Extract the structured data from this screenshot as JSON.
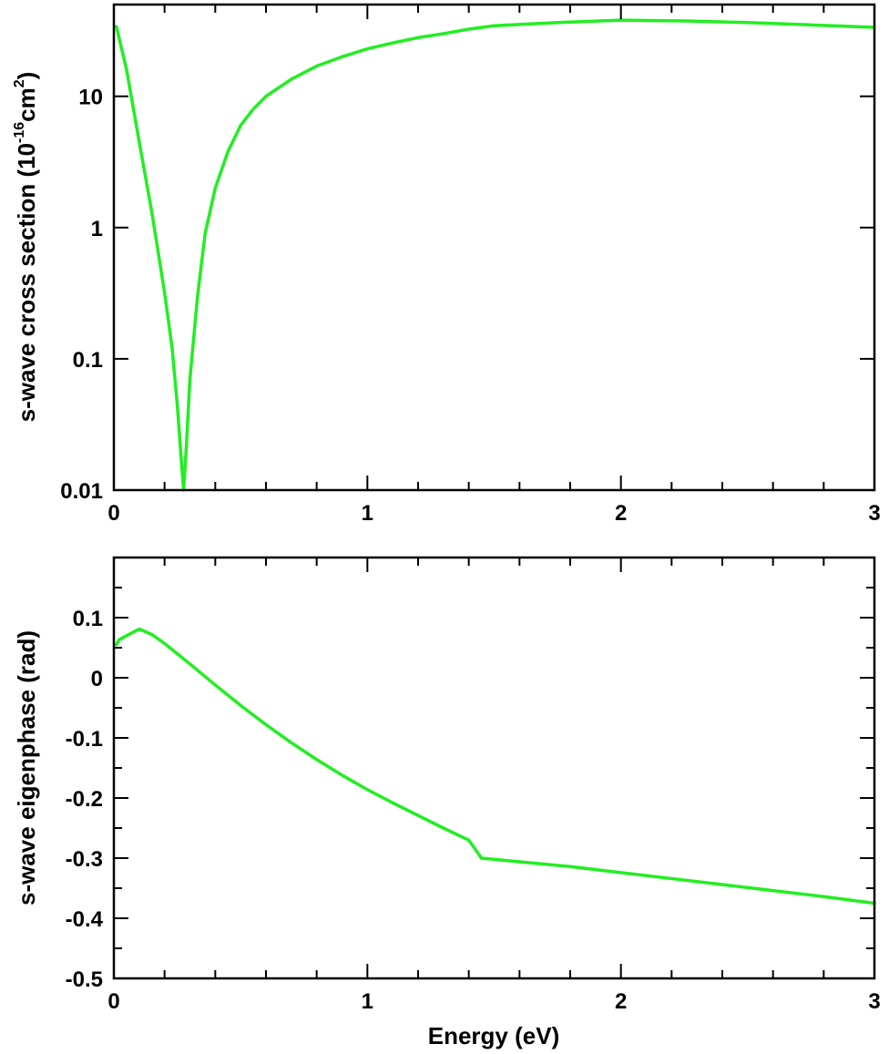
{
  "chart_data": [
    {
      "type": "line",
      "xlabel": "",
      "ylabel_main": "s-wave cross section (10",
      "ylabel_sup1": "-16",
      "ylabel_mid": "cm",
      "ylabel_sup2": "2",
      "ylabel_end": ")",
      "yscale": "log",
      "xlim": [
        0,
        3
      ],
      "ylim": [
        0.01,
        50
      ],
      "x_ticks": [
        0,
        1,
        2,
        3
      ],
      "x_tick_labels": [
        "0",
        "1",
        "2",
        "3"
      ],
      "y_ticks": [
        0.01,
        0.1,
        1,
        10
      ],
      "y_tick_labels": [
        "0.01",
        "0.1",
        "1",
        "10"
      ],
      "grid": false,
      "series": [
        {
          "color": "#22ee22",
          "points": [
            [
              0.01,
              34
            ],
            [
              0.05,
              16
            ],
            [
              0.1,
              4.5
            ],
            [
              0.15,
              1.3
            ],
            [
              0.2,
              0.32
            ],
            [
              0.23,
              0.12
            ],
            [
              0.25,
              0.045
            ],
            [
              0.265,
              0.018
            ],
            [
              0.275,
              0.01
            ],
            [
              0.285,
              0.02
            ],
            [
              0.3,
              0.07
            ],
            [
              0.33,
              0.3
            ],
            [
              0.36,
              0.9
            ],
            [
              0.4,
              2.0
            ],
            [
              0.45,
              3.8
            ],
            [
              0.5,
              6.0
            ],
            [
              0.55,
              8.0
            ],
            [
              0.6,
              10.0
            ],
            [
              0.7,
              13.5
            ],
            [
              0.8,
              17.0
            ],
            [
              0.9,
              20.0
            ],
            [
              1.0,
              23.0
            ],
            [
              1.1,
              25.5
            ],
            [
              1.2,
              28.0
            ],
            [
              1.3,
              30.0
            ],
            [
              1.4,
              32.5
            ],
            [
              1.5,
              34.5
            ],
            [
              1.75,
              36.5
            ],
            [
              2.0,
              38.0
            ],
            [
              2.25,
              37.5
            ],
            [
              2.5,
              36.5
            ],
            [
              2.75,
              35.0
            ],
            [
              3.0,
              33.5
            ]
          ]
        }
      ]
    },
    {
      "type": "line",
      "xlabel": "Energy (eV)",
      "ylabel": "s-wave eigenphase (rad)",
      "xlim": [
        0,
        3
      ],
      "ylim": [
        -0.5,
        0.2
      ],
      "x_ticks": [
        0,
        1,
        2,
        3
      ],
      "x_tick_labels": [
        "0",
        "1",
        "2",
        "3"
      ],
      "y_ticks": [
        -0.5,
        -0.4,
        -0.3,
        -0.2,
        -0.1,
        0,
        0.1
      ],
      "y_tick_labels": [
        "-0.5",
        "-0.4",
        "-0.3",
        "-0.2",
        "-0.1",
        "0",
        "0.1"
      ],
      "grid": false,
      "series": [
        {
          "color": "#22ee22",
          "points": [
            [
              0.01,
              0.055
            ],
            [
              0.02,
              0.063
            ],
            [
              0.05,
              0.07
            ],
            [
              0.1,
              0.081
            ],
            [
              0.15,
              0.072
            ],
            [
              0.2,
              0.057
            ],
            [
              0.3,
              0.023
            ],
            [
              0.4,
              -0.012
            ],
            [
              0.5,
              -0.046
            ],
            [
              0.6,
              -0.078
            ],
            [
              0.7,
              -0.108
            ],
            [
              0.8,
              -0.136
            ],
            [
              0.9,
              -0.162
            ],
            [
              1.0,
              -0.186
            ],
            [
              1.1,
              -0.208
            ],
            [
              1.2,
              -0.229
            ],
            [
              1.3,
              -0.25
            ],
            [
              1.4,
              -0.27
            ],
            [
              1.45,
              -0.3
            ],
            [
              1.6,
              -0.306
            ],
            [
              1.8,
              -0.314
            ],
            [
              2.0,
              -0.324
            ],
            [
              2.2,
              -0.334
            ],
            [
              2.4,
              -0.344
            ],
            [
              2.6,
              -0.354
            ],
            [
              2.8,
              -0.364
            ],
            [
              3.0,
              -0.375
            ]
          ]
        }
      ]
    }
  ]
}
